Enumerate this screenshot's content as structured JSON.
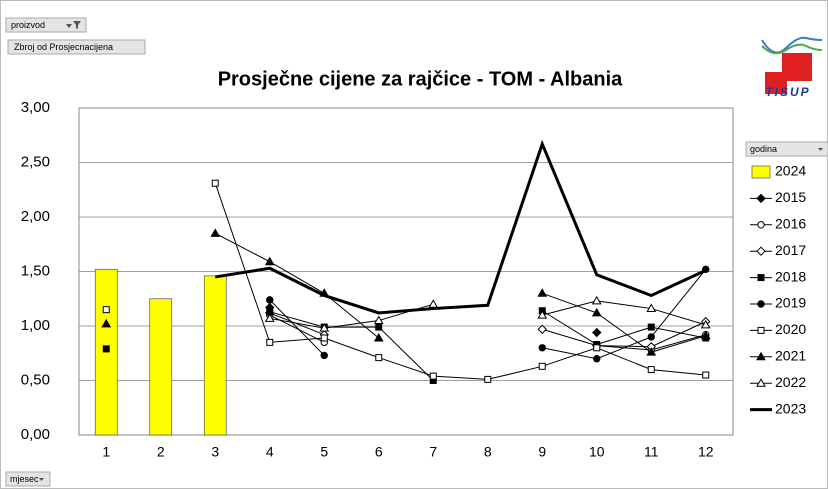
{
  "filters": {
    "product": "proizvod",
    "measure": "Zbroj od Prosjecnacijena",
    "legend_field": "godina",
    "axis_field": "mjesec"
  },
  "logo": "TISUP",
  "chart_data": {
    "type": "line",
    "title": "Prosječne cijene za rajčice - TOM - Albania",
    "categories": [
      "1",
      "2",
      "3",
      "4",
      "5",
      "6",
      "7",
      "8",
      "9",
      "10",
      "11",
      "12"
    ],
    "ylim": [
      0,
      3
    ],
    "yticks": [
      {
        "value": 0,
        "label": "0,00"
      },
      {
        "value": 0.5,
        "label": "0,50"
      },
      {
        "value": 1,
        "label": "1,00"
      },
      {
        "value": 1.5,
        "label": "1,50"
      },
      {
        "value": 2,
        "label": "2,00"
      },
      {
        "value": 2.5,
        "label": "2,50"
      },
      {
        "value": 3,
        "label": "3,00"
      }
    ],
    "grid": true,
    "series": [
      {
        "name": "2024",
        "type": "bar",
        "color": "#ffff00",
        "values": [
          1.52,
          1.25,
          1.46,
          null,
          null,
          null,
          null,
          null,
          null,
          null,
          null,
          null
        ]
      },
      {
        "name": "2015",
        "color": "#000000",
        "marker": "diamond-filled",
        "values": [
          null,
          null,
          null,
          1.17,
          null,
          null,
          null,
          null,
          null,
          0.94,
          null,
          null
        ]
      },
      {
        "name": "2016",
        "color": "#000000",
        "marker": "circle-open",
        "values": [
          null,
          null,
          null,
          1.1,
          0.85,
          null,
          null,
          null,
          null,
          0.82,
          0.78,
          0.92
        ]
      },
      {
        "name": "2017",
        "color": "#000000",
        "marker": "diamond-open",
        "values": [
          null,
          null,
          null,
          1.12,
          0.92,
          null,
          null,
          null,
          0.97,
          0.82,
          0.81,
          1.04
        ]
      },
      {
        "name": "2018",
        "color": "#000000",
        "marker": "square-filled",
        "values": [
          0.79,
          null,
          null,
          1.13,
          0.99,
          0.99,
          0.5,
          null,
          1.14,
          0.83,
          0.99,
          0.89
        ]
      },
      {
        "name": "2019",
        "color": "#000000",
        "marker": "circle-filled",
        "values": [
          null,
          null,
          null,
          1.24,
          0.73,
          null,
          null,
          null,
          0.8,
          0.7,
          0.9,
          1.52
        ]
      },
      {
        "name": "2020",
        "color": "#000000",
        "marker": "square-open",
        "values": [
          1.15,
          null,
          2.31,
          0.85,
          0.89,
          0.71,
          0.54,
          0.51,
          0.63,
          0.8,
          0.6,
          0.55
        ]
      },
      {
        "name": "2021",
        "color": "#000000",
        "marker": "triangle-filled",
        "values": [
          1.02,
          null,
          1.85,
          1.59,
          1.3,
          0.89,
          null,
          null,
          1.3,
          1.12,
          0.76,
          0.91
        ]
      },
      {
        "name": "2022",
        "color": "#000000",
        "marker": "triangle-open",
        "values": [
          null,
          null,
          null,
          1.07,
          0.98,
          1.05,
          1.2,
          null,
          1.1,
          1.23,
          1.16,
          1.01
        ]
      },
      {
        "name": "2023",
        "color": "#000000",
        "marker": "none",
        "line_width": 3,
        "values": [
          null,
          null,
          1.45,
          1.53,
          1.28,
          1.12,
          1.16,
          1.19,
          2.67,
          1.47,
          1.28,
          1.51
        ]
      }
    ]
  }
}
